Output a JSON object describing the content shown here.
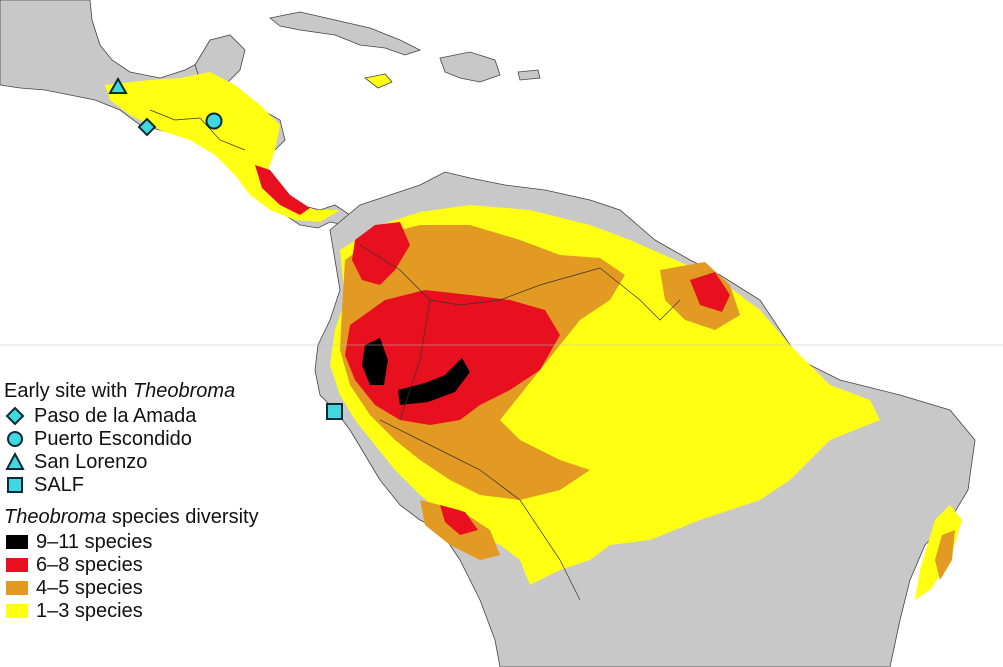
{
  "map": {
    "colors": {
      "land": "#c8c8c8",
      "sea": "#ffffff",
      "border": "#333333",
      "marker_fill": "#40d8e0",
      "marker_stroke": "#0a2a3a"
    }
  },
  "legend": {
    "sites_heading": {
      "text": "Early site with",
      "italic": "Theobroma"
    },
    "sites": [
      {
        "label": "Paso de la Amada",
        "marker": "diamond"
      },
      {
        "label": "Puerto Escondido",
        "marker": "circle"
      },
      {
        "label": "San Lorenzo",
        "marker": "triangle"
      },
      {
        "label": "SALF",
        "marker": "square"
      }
    ],
    "diversity_heading": {
      "italic": "Theobroma",
      "text": "species diversity"
    },
    "diversity": [
      {
        "label": "9–11 species",
        "color": "#000000"
      },
      {
        "label": "6–8 species",
        "color": "#e8101e"
      },
      {
        "label": "4–5 species",
        "color": "#e39a22"
      },
      {
        "label": "1–3 species",
        "color": "#ffff12"
      }
    ]
  }
}
